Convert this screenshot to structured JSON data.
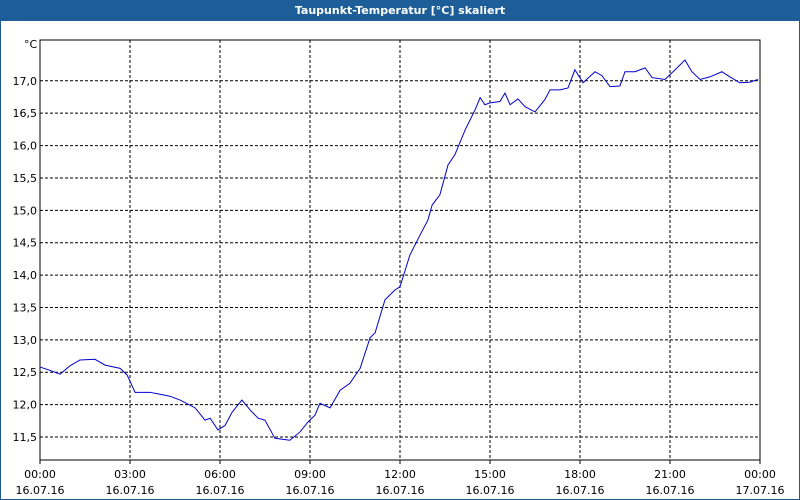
{
  "chart_data": {
    "type": "line",
    "title": "Taupunkt-Temperatur [°C] skaliert",
    "y_label": "°C",
    "grid": true,
    "x": [
      0,
      0.33,
      0.67,
      1.0,
      1.33,
      1.83,
      2.17,
      2.67,
      2.9,
      3.17,
      3.67,
      4.0,
      4.33,
      4.67,
      5.17,
      5.5,
      5.67,
      5.93,
      6.17,
      6.4,
      6.73,
      7.0,
      7.27,
      7.5,
      7.83,
      8.33,
      8.67,
      8.93,
      9.17,
      9.33,
      9.67,
      10.0,
      10.33,
      10.67,
      11.0,
      11.17,
      11.5,
      11.83,
      12.0,
      12.33,
      12.67,
      12.93,
      13.07,
      13.33,
      13.6,
      13.83,
      14.17,
      14.5,
      14.67,
      14.83,
      15.0,
      15.33,
      15.5,
      15.67,
      15.93,
      16.17,
      16.5,
      16.83,
      17.0,
      17.33,
      17.6,
      17.83,
      18.1,
      18.5,
      18.73,
      19.0,
      19.33,
      19.5,
      19.83,
      20.17,
      20.4,
      20.83,
      21.17,
      21.5,
      21.73,
      22.0,
      22.33,
      22.73,
      23.0,
      23.33,
      23.67,
      23.93
    ],
    "series": [
      {
        "name": "Taupunkt-Temperatur",
        "color": "#0000cc",
        "values": [
          12.58,
          12.53,
          12.47,
          12.6,
          12.69,
          12.7,
          12.61,
          12.56,
          12.46,
          12.19,
          12.19,
          12.16,
          12.13,
          12.07,
          11.95,
          11.76,
          11.79,
          11.61,
          11.68,
          11.88,
          12.07,
          11.92,
          11.79,
          11.76,
          11.48,
          11.45,
          11.58,
          11.73,
          11.84,
          12.02,
          11.95,
          12.22,
          12.33,
          12.56,
          13.03,
          13.11,
          13.62,
          13.77,
          13.82,
          14.31,
          14.62,
          14.85,
          15.08,
          15.24,
          15.7,
          15.86,
          16.24,
          16.55,
          16.74,
          16.63,
          16.66,
          16.68,
          16.81,
          16.63,
          16.72,
          16.6,
          16.52,
          16.71,
          16.86,
          16.86,
          16.89,
          17.17,
          16.97,
          17.14,
          17.08,
          16.91,
          16.92,
          17.14,
          17.14,
          17.2,
          17.05,
          17.02,
          17.17,
          17.32,
          17.14,
          17.02,
          17.06,
          17.14,
          17.06,
          16.97,
          16.98,
          17.02
        ]
      }
    ],
    "xlim": [
      0,
      24
    ],
    "xticks": [
      {
        "value": 0,
        "label": "00:00"
      },
      {
        "value": 3,
        "label": "03:00"
      },
      {
        "value": 6,
        "label": "06:00"
      },
      {
        "value": 9,
        "label": "09:00"
      },
      {
        "value": 12,
        "label": "12:00"
      },
      {
        "value": 15,
        "label": "15:00"
      },
      {
        "value": 18,
        "label": "18:00"
      },
      {
        "value": 21,
        "label": "21:00"
      },
      {
        "value": 24,
        "label": "00:00"
      }
    ],
    "xtick_dates": [
      "16.07.16",
      "16.07.16",
      "16.07.16",
      "16.07.16",
      "16.07.16",
      "16.07.16",
      "16.07.16",
      "16.07.16",
      "17.07.16"
    ],
    "ylim": [
      11.145,
      17.63
    ],
    "yticks": [
      {
        "value": 11.5,
        "label": "11,5"
      },
      {
        "value": 12.0,
        "label": "12,0"
      },
      {
        "value": 12.5,
        "label": "12,5"
      },
      {
        "value": 13.0,
        "label": "13,0"
      },
      {
        "value": 13.5,
        "label": "13,5"
      },
      {
        "value": 14.0,
        "label": "14,0"
      },
      {
        "value": 14.5,
        "label": "14,5"
      },
      {
        "value": 15.0,
        "label": "15,0"
      },
      {
        "value": 15.5,
        "label": "15,5"
      },
      {
        "value": 16.0,
        "label": "16,0"
      },
      {
        "value": 16.5,
        "label": "16,5"
      },
      {
        "value": 17.0,
        "label": "17,0"
      }
    ]
  }
}
